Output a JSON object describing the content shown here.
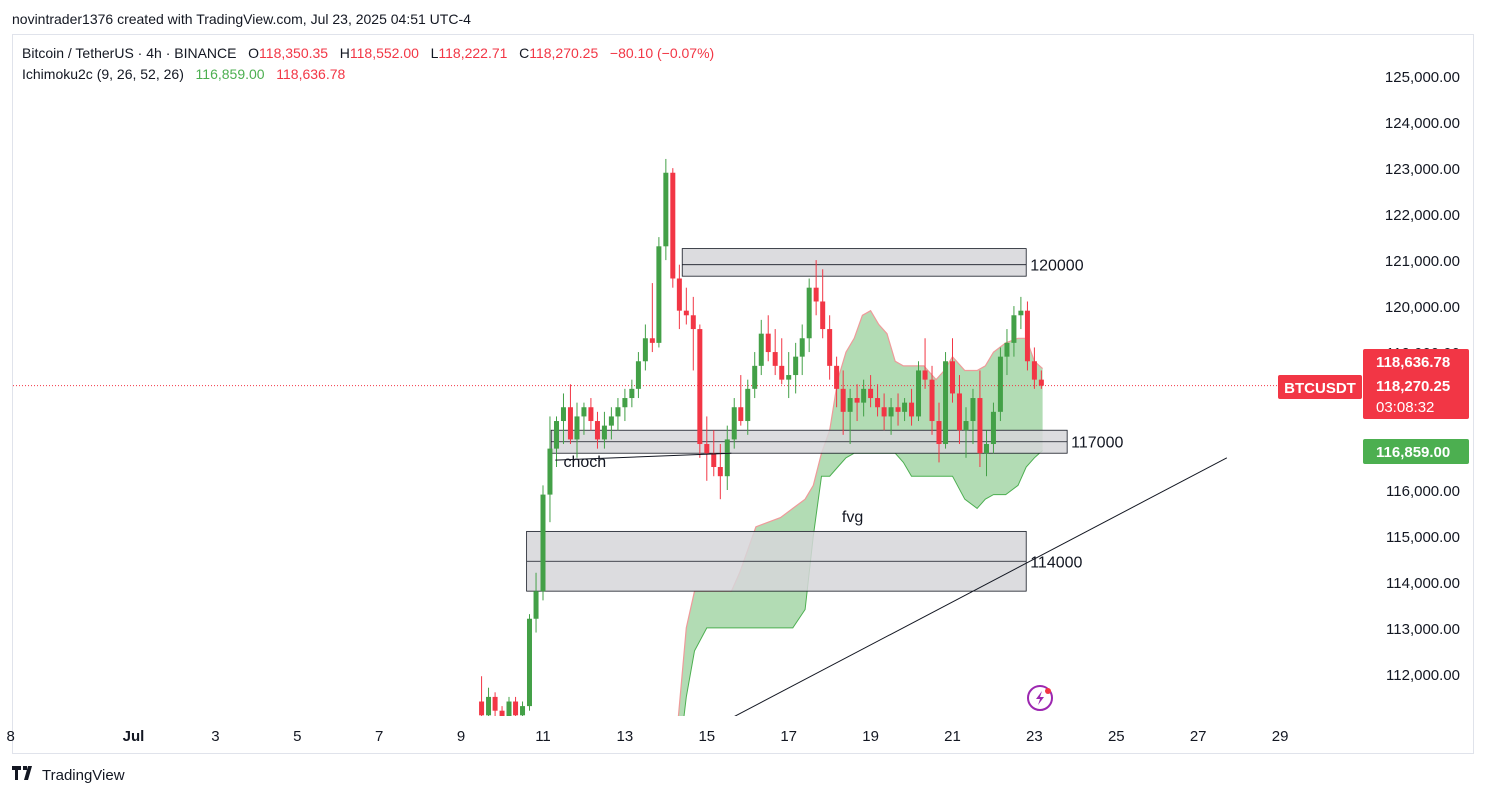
{
  "header": {
    "attribution": "novintrader1376 created with TradingView.com, Jul 23, 2025 04:51 UTC-4"
  },
  "legend": {
    "symbol": "Bitcoin / TetherUS · 4h · BINANCE",
    "open_label": "O",
    "open": "118,350.35",
    "high_label": "H",
    "high": "118,552.00",
    "low_label": "L",
    "low": "118,222.71",
    "close_label": "C",
    "close": "118,270.25",
    "change": "−80.10 (−0.07%)",
    "indicator": "Ichimoku2c (9, 26, 52, 26)",
    "ind_val1": "116,859.00",
    "ind_val2": "118,636.78"
  },
  "price_tags": {
    "symbol": "BTCUSDT",
    "span_b": "118,636.78",
    "last": "118,270.25",
    "countdown": "03:08:32",
    "span_a": "116,859.00"
  },
  "colors": {
    "up": "#43a047",
    "down": "#f23645",
    "cloud": "#a5d6a7",
    "cloud_line_up": "#4caf50",
    "cloud_line_down": "#ef9a9a",
    "zone": "#d6d6d9",
    "tag_red": "#f23645",
    "tag_green": "#4caf50"
  },
  "chart_data": {
    "type": "candlestick",
    "symbol": "Bitcoin / TetherUS",
    "interval": "4h",
    "exchange": "BINANCE",
    "ylim": [
      111000,
      125500
    ],
    "y_ticks": [
      {
        "v": 112000,
        "label": "112,000.00"
      },
      {
        "v": 113000,
        "label": "113,000.00"
      },
      {
        "v": 114000,
        "label": "114,000.00"
      },
      {
        "v": 115000,
        "label": "115,000.00"
      },
      {
        "v": 116000,
        "label": "116,000.00"
      },
      {
        "v": 117000,
        "label": "117,000.00"
      },
      {
        "v": 118000,
        "label": "118,000.00"
      },
      {
        "v": 119000,
        "label": "119,000.00"
      },
      {
        "v": 120000,
        "label": "120,000.00"
      },
      {
        "v": 121000,
        "label": "121,000.00"
      },
      {
        "v": 122000,
        "label": "122,000.00"
      },
      {
        "v": 123000,
        "label": "123,000.00"
      },
      {
        "v": 124000,
        "label": "124,000.00"
      },
      {
        "v": 125000,
        "label": "125,000.00"
      }
    ],
    "x_ticks": [
      {
        "day": -2,
        "label": "8"
      },
      {
        "day": 1,
        "label": "Jul"
      },
      {
        "day": 3,
        "label": "3"
      },
      {
        "day": 5,
        "label": "5"
      },
      {
        "day": 7,
        "label": "7"
      },
      {
        "day": 9,
        "label": "9"
      },
      {
        "day": 11,
        "label": "11"
      },
      {
        "day": 13,
        "label": "13"
      },
      {
        "day": 15,
        "label": "15"
      },
      {
        "day": 17,
        "label": "17"
      },
      {
        "day": 19,
        "label": "19"
      },
      {
        "day": 21,
        "label": "21"
      },
      {
        "day": 23,
        "label": "23"
      },
      {
        "day": 25,
        "label": "25"
      },
      {
        "day": 27,
        "label": "27"
      },
      {
        "day": 29,
        "label": "29"
      }
    ],
    "candles": [
      [
        9.5,
        111400,
        111950,
        111000,
        111100
      ],
      [
        9.67,
        111100,
        111700,
        110900,
        111500
      ],
      [
        9.83,
        111500,
        111600,
        111000,
        111200
      ],
      [
        10.0,
        111200,
        111300,
        110900,
        111050
      ],
      [
        10.17,
        111050,
        111500,
        110950,
        111400
      ],
      [
        10.33,
        111400,
        111500,
        110950,
        111100
      ],
      [
        10.5,
        111100,
        111400,
        111000,
        111300
      ],
      [
        10.67,
        111300,
        113300,
        111200,
        113200
      ],
      [
        10.83,
        113200,
        114200,
        112900,
        113800
      ],
      [
        11.0,
        113800,
        116100,
        113600,
        115900
      ],
      [
        11.17,
        115900,
        117600,
        115300,
        116900
      ],
      [
        11.33,
        116900,
        117600,
        116500,
        117500
      ],
      [
        11.5,
        117500,
        118100,
        117000,
        117800
      ],
      [
        11.67,
        117800,
        118300,
        117000,
        117100
      ],
      [
        11.83,
        117100,
        117900,
        116700,
        117600
      ],
      [
        12.0,
        117600,
        117900,
        117200,
        117800
      ],
      [
        12.17,
        117800,
        118000,
        117300,
        117500
      ],
      [
        12.33,
        117500,
        117700,
        116900,
        117100
      ],
      [
        12.5,
        117100,
        117700,
        116900,
        117400
      ],
      [
        12.67,
        117400,
        117800,
        117100,
        117600
      ],
      [
        12.83,
        117600,
        118000,
        117300,
        117800
      ],
      [
        13.0,
        117800,
        118200,
        117500,
        118000
      ],
      [
        13.17,
        118000,
        118400,
        117800,
        118200
      ],
      [
        13.33,
        118200,
        119000,
        118000,
        118800
      ],
      [
        13.5,
        118800,
        119600,
        118600,
        119300
      ],
      [
        13.67,
        119300,
        120500,
        119000,
        119200
      ],
      [
        13.83,
        119200,
        121500,
        119100,
        121300
      ],
      [
        14.0,
        121300,
        123200,
        121000,
        122900
      ],
      [
        14.17,
        122900,
        123000,
        120400,
        120600
      ],
      [
        14.33,
        120600,
        120900,
        119500,
        119900
      ],
      [
        14.5,
        119900,
        120400,
        119600,
        119800
      ],
      [
        14.67,
        119800,
        120200,
        118600,
        119500
      ],
      [
        14.83,
        119500,
        119600,
        116700,
        117000
      ],
      [
        15.0,
        117000,
        117600,
        116200,
        116800
      ],
      [
        15.17,
        116800,
        117300,
        116300,
        116500
      ],
      [
        15.33,
        116500,
        117000,
        115800,
        116300
      ],
      [
        15.5,
        116300,
        117400,
        116000,
        117100
      ],
      [
        15.67,
        117100,
        118000,
        116900,
        117800
      ],
      [
        15.83,
        117800,
        118500,
        117400,
        117500
      ],
      [
        16.0,
        117500,
        118400,
        117200,
        118200
      ],
      [
        16.17,
        118200,
        119000,
        118000,
        118700
      ],
      [
        16.33,
        118700,
        119700,
        118500,
        119400
      ],
      [
        16.5,
        119400,
        119800,
        118800,
        119000
      ],
      [
        16.67,
        119000,
        119500,
        118500,
        118700
      ],
      [
        16.83,
        118700,
        119300,
        118300,
        118400
      ],
      [
        17.0,
        118400,
        119000,
        118000,
        118500
      ],
      [
        17.17,
        118500,
        119200,
        118100,
        118900
      ],
      [
        17.33,
        118900,
        119600,
        118500,
        119300
      ],
      [
        17.5,
        119300,
        120600,
        119000,
        120400
      ],
      [
        17.67,
        120400,
        121000,
        119800,
        120100
      ],
      [
        17.83,
        120100,
        120800,
        119300,
        119500
      ],
      [
        18.0,
        119500,
        119800,
        118400,
        118700
      ],
      [
        18.17,
        118700,
        118900,
        117800,
        118200
      ],
      [
        18.33,
        118200,
        118600,
        117200,
        117700
      ],
      [
        18.5,
        117700,
        118200,
        117000,
        118000
      ],
      [
        18.67,
        118000,
        118300,
        117500,
        117900
      ],
      [
        18.83,
        117900,
        118400,
        117600,
        118200
      ],
      [
        19.0,
        118200,
        118500,
        117800,
        118000
      ],
      [
        19.17,
        118000,
        118300,
        117600,
        117800
      ],
      [
        19.33,
        117800,
        118100,
        117300,
        117600
      ],
      [
        19.5,
        117600,
        118000,
        117200,
        117800
      ],
      [
        19.67,
        117800,
        118100,
        117400,
        117700
      ],
      [
        19.83,
        117700,
        118000,
        117500,
        117900
      ],
      [
        20.0,
        117900,
        118200,
        117400,
        117600
      ],
      [
        20.17,
        117600,
        118800,
        117500,
        118600
      ],
      [
        20.33,
        118600,
        119300,
        118200,
        118400
      ],
      [
        20.5,
        118400,
        118700,
        117200,
        117500
      ],
      [
        20.67,
        117500,
        117900,
        116600,
        117000
      ],
      [
        20.83,
        117000,
        119000,
        116900,
        118800
      ],
      [
        21.0,
        118800,
        119300,
        117900,
        118100
      ],
      [
        21.17,
        118100,
        118500,
        117000,
        117300
      ],
      [
        21.33,
        117300,
        117800,
        116700,
        117500
      ],
      [
        21.5,
        117500,
        118200,
        117000,
        118000
      ],
      [
        21.67,
        118000,
        118600,
        116500,
        116800
      ],
      [
        21.83,
        116800,
        117300,
        116300,
        117000
      ],
      [
        22.0,
        117000,
        117900,
        116800,
        117700
      ],
      [
        22.17,
        117700,
        119100,
        117500,
        118900
      ],
      [
        22.33,
        118900,
        119500,
        118500,
        119200
      ],
      [
        22.5,
        119200,
        120000,
        118900,
        119800
      ],
      [
        22.67,
        119800,
        120200,
        119500,
        119900
      ],
      [
        22.83,
        119900,
        120100,
        118600,
        118800
      ],
      [
        23.0,
        118800,
        119100,
        118200,
        118400
      ],
      [
        23.17,
        118400,
        118600,
        118200,
        118270
      ]
    ],
    "cloud": [
      [
        14.0,
        108500,
        109000
      ],
      [
        14.3,
        110000,
        111000
      ],
      [
        14.5,
        111500,
        113000
      ],
      [
        14.7,
        112500,
        113800
      ],
      [
        15.0,
        113000,
        113800
      ],
      [
        15.6,
        113000,
        113800
      ],
      [
        15.8,
        113000,
        114200
      ],
      [
        16.0,
        113000,
        114700
      ],
      [
        16.2,
        113000,
        115200
      ],
      [
        16.5,
        113000,
        115300
      ],
      [
        16.8,
        113000,
        115400
      ],
      [
        17.1,
        113000,
        115600
      ],
      [
        17.4,
        113400,
        115800
      ],
      [
        17.6,
        115000,
        116100
      ],
      [
        17.8,
        116300,
        116800
      ],
      [
        18.0,
        116300,
        117300
      ],
      [
        18.2,
        116500,
        118400
      ],
      [
        18.4,
        116700,
        119000
      ],
      [
        18.6,
        116800,
        119300
      ],
      [
        18.8,
        116800,
        119800
      ],
      [
        19.0,
        116800,
        119900
      ],
      [
        19.2,
        116800,
        119600
      ],
      [
        19.4,
        116800,
        119400
      ],
      [
        19.6,
        116800,
        118800
      ],
      [
        19.8,
        116600,
        118700
      ],
      [
        20.0,
        116300,
        118700
      ],
      [
        20.3,
        116300,
        118700
      ],
      [
        20.6,
        116300,
        118400
      ],
      [
        20.8,
        116300,
        118600
      ],
      [
        21.0,
        116300,
        118900
      ],
      [
        21.3,
        115800,
        118600
      ],
      [
        21.6,
        115600,
        118600
      ],
      [
        21.8,
        115800,
        118700
      ],
      [
        22.0,
        115900,
        119000
      ],
      [
        22.3,
        115900,
        119200
      ],
      [
        22.6,
        116100,
        119300
      ],
      [
        22.8,
        116500,
        119300
      ],
      [
        23.0,
        116700,
        118800
      ],
      [
        23.2,
        116860,
        118640
      ]
    ],
    "zones": [
      {
        "label": "120000",
        "x0": 14.4,
        "x1": 22.8,
        "y0": 120650,
        "y1": 121250,
        "mid": 120900
      },
      {
        "label": "117000",
        "x0": 11.2,
        "x1": 23.8,
        "y0": 116800,
        "y1": 117300,
        "mid": 117050
      },
      {
        "label": "114000",
        "x0": 10.6,
        "x1": 22.8,
        "y0": 113800,
        "y1": 115100,
        "mid": 114450
      }
    ],
    "annotations": [
      {
        "text": "choch",
        "x": 11.5,
        "y": 116500
      },
      {
        "text": "fvg",
        "x": 18.3,
        "y": 115300
      }
    ],
    "trendline": [
      [
        15.3,
        110900
      ],
      [
        27.7,
        116700
      ]
    ],
    "choch_line": [
      [
        11.3,
        116650
      ],
      [
        15.6,
        116800
      ]
    ]
  }
}
